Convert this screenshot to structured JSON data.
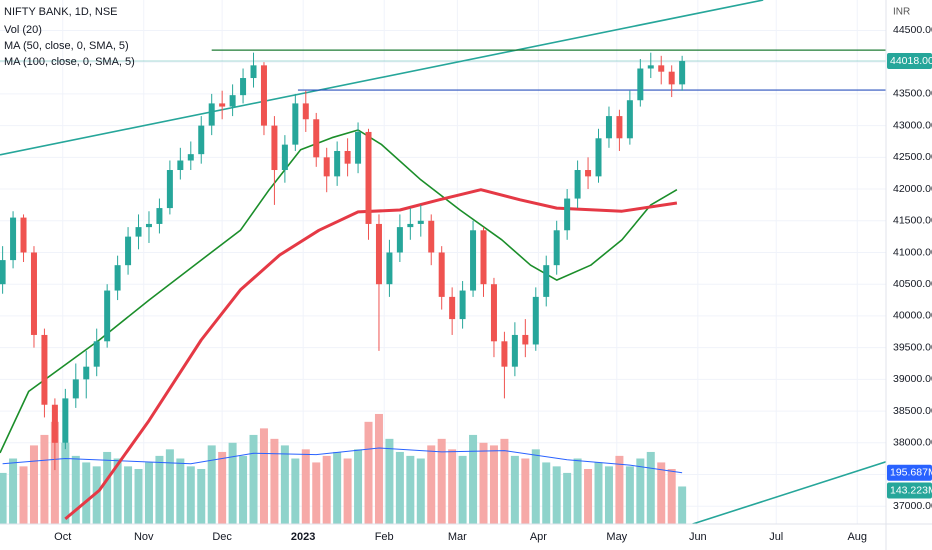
{
  "chart_data": {
    "type": "candlestick",
    "title": "NIFTY BANK, 1D, NSE",
    "currency": "INR",
    "up_color": "#26a69a",
    "down_color": "#ef5350",
    "xlim": [
      "2022-09-07",
      "2023-08-12"
    ],
    "ylim": [
      36720,
      44980
    ],
    "grid": true,
    "xticks": [
      {
        "value": "2022-10-01",
        "label": "Oct"
      },
      {
        "value": "2022-11-01",
        "label": "Nov"
      },
      {
        "value": "2022-12-01",
        "label": "Dec"
      },
      {
        "value": "2023-01-01",
        "label": "2023",
        "bold": true
      },
      {
        "value": "2023-02-01",
        "label": "Feb"
      },
      {
        "value": "2023-03-01",
        "label": "Mar"
      },
      {
        "value": "2023-04-01",
        "label": "Apr"
      },
      {
        "value": "2023-05-01",
        "label": "May"
      },
      {
        "value": "2023-06-01",
        "label": "Jun"
      },
      {
        "value": "2023-07-01",
        "label": "Jul"
      },
      {
        "value": "2023-08-01",
        "label": "Aug"
      }
    ],
    "yticks": [
      {
        "value": 37000,
        "label": "37000.00"
      },
      {
        "value": 37500,
        "label": "37500.00"
      },
      {
        "value": 38000,
        "label": "38000.00"
      },
      {
        "value": 38500,
        "label": "38500.00"
      },
      {
        "value": 39000,
        "label": "39000.00"
      },
      {
        "value": 39500,
        "label": "39500.00"
      },
      {
        "value": 40000,
        "label": "40000.00"
      },
      {
        "value": 40500,
        "label": "40500.00"
      },
      {
        "value": 41000,
        "label": "41000.00"
      },
      {
        "value": 41500,
        "label": "41500.00"
      },
      {
        "value": 42000,
        "label": "42000.00"
      },
      {
        "value": 42500,
        "label": "42500.00"
      },
      {
        "value": 43000,
        "label": "43000.00"
      },
      {
        "value": 43500,
        "label": "43500.00"
      },
      {
        "value": 44000,
        "label": "44000.00"
      },
      {
        "value": 44500,
        "label": "44500.00"
      }
    ],
    "x": [
      "2022-09-08",
      "2022-09-12",
      "2022-09-16",
      "2022-09-20",
      "2022-09-24",
      "2022-09-28",
      "2022-10-02",
      "2022-10-06",
      "2022-10-10",
      "2022-10-14",
      "2022-10-18",
      "2022-10-22",
      "2022-10-26",
      "2022-10-30",
      "2022-11-03",
      "2022-11-07",
      "2022-11-11",
      "2022-11-15",
      "2022-11-19",
      "2022-11-23",
      "2022-11-27",
      "2022-12-01",
      "2022-12-05",
      "2022-12-09",
      "2022-12-13",
      "2022-12-17",
      "2022-12-21",
      "2022-12-25",
      "2022-12-29",
      "2023-01-02",
      "2023-01-06",
      "2023-01-10",
      "2023-01-14",
      "2023-01-18",
      "2023-01-22",
      "2023-01-26",
      "2023-01-30",
      "2023-02-03",
      "2023-02-07",
      "2023-02-11",
      "2023-02-15",
      "2023-02-19",
      "2023-02-23",
      "2023-02-27",
      "2023-03-03",
      "2023-03-07",
      "2023-03-11",
      "2023-03-15",
      "2023-03-19",
      "2023-03-23",
      "2023-03-27",
      "2023-03-31",
      "2023-04-04",
      "2023-04-08",
      "2023-04-12",
      "2023-04-16",
      "2023-04-20",
      "2023-04-24",
      "2023-04-28",
      "2023-05-02",
      "2023-05-06",
      "2023-05-10",
      "2023-05-14",
      "2023-05-18",
      "2023-05-22",
      "2023-05-26"
    ],
    "open": [
      40500,
      40880,
      41550,
      41000,
      39700,
      38600,
      38000,
      38700,
      39000,
      39200,
      39600,
      40400,
      40800,
      41250,
      41400,
      41450,
      41700,
      42300,
      42450,
      42550,
      43000,
      43350,
      43300,
      43480,
      43750,
      43950,
      43000,
      42300,
      42700,
      43350,
      43100,
      42500,
      42200,
      42600,
      42400,
      42900,
      41450,
      40500,
      41000,
      41400,
      41450,
      41500,
      41000,
      40300,
      39950,
      40400,
      41350,
      40500,
      39600,
      39200,
      39700,
      39550,
      40300,
      40800,
      41350,
      41850,
      42300,
      42200,
      42800,
      43150,
      42800,
      43400,
      43900,
      43950,
      43850,
      43650
    ],
    "high": [
      41100,
      41650,
      41600,
      41100,
      39800,
      38700,
      38850,
      39250,
      39450,
      39800,
      40500,
      40950,
      41400,
      41600,
      41650,
      41850,
      42450,
      42650,
      42750,
      43150,
      43500,
      43550,
      43650,
      43900,
      44150,
      44000,
      43150,
      42850,
      43500,
      43550,
      43200,
      42650,
      42750,
      42800,
      43050,
      42950,
      41600,
      41200,
      41600,
      41700,
      41750,
      41600,
      41100,
      40450,
      40550,
      41500,
      41400,
      40600,
      39750,
      39900,
      39950,
      40450,
      40950,
      41500,
      42000,
      42450,
      42500,
      42950,
      43300,
      43250,
      43550,
      44050,
      44150,
      44100,
      43950,
      44100
    ],
    "low": [
      40350,
      40750,
      40850,
      39500,
      38400,
      37570,
      37900,
      38550,
      38700,
      39050,
      39500,
      40250,
      40650,
      41050,
      41150,
      41300,
      41600,
      42150,
      42300,
      42400,
      42850,
      43100,
      43150,
      43350,
      43600,
      42850,
      41750,
      42100,
      42600,
      42900,
      42350,
      41950,
      42050,
      42200,
      42250,
      41200,
      39450,
      40300,
      40850,
      41200,
      41250,
      40800,
      40100,
      39700,
      39800,
      40300,
      40300,
      39350,
      38700,
      39050,
      39350,
      39450,
      40150,
      40650,
      41200,
      41700,
      42000,
      42100,
      42650,
      42600,
      42700,
      43300,
      43750,
      43650,
      43450,
      43550
    ],
    "close": [
      40880,
      41550,
      41000,
      39700,
      38600,
      38000,
      38700,
      39000,
      39200,
      39600,
      40400,
      40800,
      41250,
      41400,
      41450,
      41700,
      42300,
      42450,
      42550,
      43000,
      43350,
      43300,
      43480,
      43750,
      43950,
      43000,
      42300,
      42700,
      43350,
      43100,
      42500,
      42200,
      42600,
      42400,
      42900,
      41450,
      40500,
      41000,
      41400,
      41450,
      41500,
      41000,
      40300,
      39950,
      40400,
      41350,
      40500,
      39600,
      39200,
      39700,
      39550,
      40300,
      40800,
      41350,
      41850,
      42300,
      42200,
      42800,
      43150,
      42800,
      43400,
      43900,
      43950,
      43850,
      43650,
      44018
    ],
    "close_value_labels": [
      null,
      null,
      null,
      null,
      null,
      null,
      null,
      null,
      null,
      null,
      null,
      null,
      null,
      null,
      null,
      null,
      null,
      null,
      null,
      null,
      null,
      null,
      null,
      null,
      null,
      null,
      null,
      null,
      null,
      null,
      null,
      null,
      null,
      null,
      null,
      null,
      null,
      null,
      null,
      null,
      null,
      null,
      null,
      null,
      null,
      null,
      null,
      null,
      null,
      null,
      null,
      null,
      null,
      null,
      null,
      null,
      null,
      null,
      null,
      null,
      null,
      null,
      null,
      null,
      null,
      "44018.00"
    ],
    "volume": {
      "name": "Vol (20)",
      "ylim": [
        0,
        2000
      ],
      "up_color": "#8fd3cb",
      "down_color": "#f6a9a7",
      "values": [
        195,
        250,
        220,
        300,
        340,
        390,
        310,
        260,
        235,
        220,
        275,
        250,
        220,
        210,
        235,
        260,
        285,
        250,
        220,
        210,
        300,
        275,
        310,
        260,
        340,
        365,
        325,
        300,
        250,
        285,
        235,
        260,
        275,
        250,
        285,
        390,
        420,
        325,
        275,
        260,
        250,
        300,
        325,
        285,
        260,
        340,
        310,
        300,
        325,
        260,
        250,
        285,
        235,
        220,
        195,
        250,
        210,
        235,
        220,
        260,
        220,
        250,
        275,
        235,
        210,
        143.223
      ],
      "value_labels": [
        null,
        null,
        null,
        null,
        null,
        null,
        null,
        null,
        null,
        null,
        null,
        null,
        null,
        null,
        null,
        null,
        null,
        null,
        null,
        null,
        null,
        null,
        null,
        null,
        null,
        null,
        null,
        null,
        null,
        null,
        null,
        null,
        null,
        null,
        null,
        null,
        null,
        null,
        null,
        null,
        null,
        null,
        null,
        null,
        null,
        null,
        null,
        null,
        null,
        null,
        null,
        null,
        null,
        null,
        null,
        null,
        null,
        null,
        null,
        null,
        null,
        null,
        null,
        null,
        null,
        "143.223M"
      ],
      "ma": {
        "color": "#2962ff",
        "x": [
          "2022-09-08",
          "2022-10-02",
          "2022-10-26",
          "2022-11-19",
          "2022-12-13",
          "2023-01-06",
          "2023-01-30",
          "2023-02-23",
          "2023-03-19",
          "2023-04-12",
          "2023-05-06",
          "2023-05-26"
        ],
        "values": [
          230,
          250,
          240,
          230,
          270,
          265,
          290,
          275,
          280,
          245,
          225,
          195.687
        ],
        "value_labels": [
          null,
          null,
          null,
          null,
          null,
          null,
          null,
          null,
          null,
          null,
          null,
          "195.687M"
        ]
      }
    },
    "series": [
      {
        "name": "MA (50, close, 0, SMA, 5)",
        "color": "#1b8e2a",
        "x": [
          "2022-09-07",
          "2022-09-18",
          "2022-10-15",
          "2022-11-03",
          "2022-11-23",
          "2022-12-08",
          "2022-12-19",
          "2022-12-31",
          "2023-01-12",
          "2023-01-22",
          "2023-01-31",
          "2023-02-15",
          "2023-03-02",
          "2023-03-18",
          "2023-03-29",
          "2023-04-08",
          "2023-04-21",
          "2023-05-03",
          "2023-05-14",
          "2023-05-24"
        ],
        "values": [
          37840,
          38810,
          39620,
          40250,
          40880,
          41350,
          41990,
          42620,
          42810,
          42930,
          42700,
          42145,
          41670,
          41200,
          40800,
          40565,
          40800,
          41200,
          41750,
          41990
        ]
      },
      {
        "name": "MA (100, close, 0, SMA, 5)",
        "color": "#e53945",
        "x": [
          "2022-10-02",
          "2022-10-15",
          "2022-11-03",
          "2022-11-23",
          "2022-12-08",
          "2022-12-23",
          "2023-01-07",
          "2023-01-22",
          "2023-02-07",
          "2023-02-22",
          "2023-03-10",
          "2023-03-25",
          "2023-04-08",
          "2023-05-03",
          "2023-05-24"
        ],
        "values": [
          36800,
          37250,
          38350,
          39620,
          40410,
          40960,
          41350,
          41640,
          41670,
          41830,
          41990,
          41830,
          41700,
          41650,
          41780
        ]
      }
    ],
    "hlines": [
      {
        "value": 44190,
        "start": "2022-11-27",
        "color": "#1e7b34"
      },
      {
        "value": 43560,
        "start": "2022-12-30",
        "color": "#2a52be"
      }
    ],
    "trendlines": [
      {
        "x": [
          "2022-09-07",
          "2023-06-26"
        ],
        "values": [
          42540,
          44980
        ],
        "color": "#26a69a"
      },
      {
        "x": [
          "2023-05-30",
          "2023-08-12"
        ],
        "values": [
          36720,
          37700
        ],
        "color": "#26a69a"
      }
    ]
  }
}
